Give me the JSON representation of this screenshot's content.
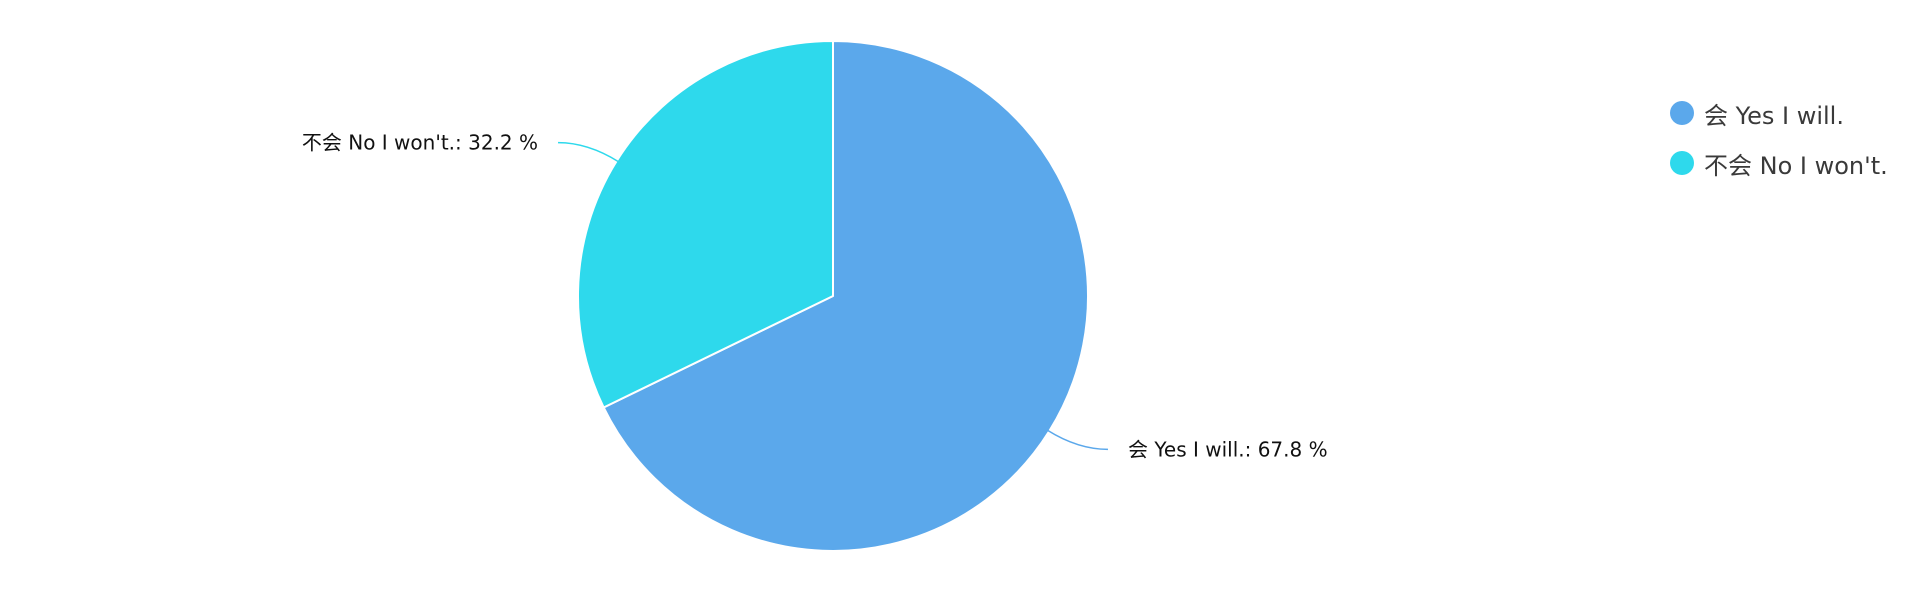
{
  "chart_data": {
    "type": "pie",
    "categories": [
      "会 Yes I will.",
      "不会 No I won't."
    ],
    "values": [
      67.8,
      32.2
    ],
    "data_labels": [
      "会 Yes I will.: 67.8 %",
      "不会 No I won't.: 32.2 %"
    ],
    "colors": [
      "#5ba8eb",
      "#2ed9ec"
    ],
    "legend": {
      "position": "top-right",
      "entries": [
        "会 Yes I will.",
        "不会 No I won't."
      ]
    },
    "start_angle": "12 o'clock",
    "direction": "clockwise"
  }
}
